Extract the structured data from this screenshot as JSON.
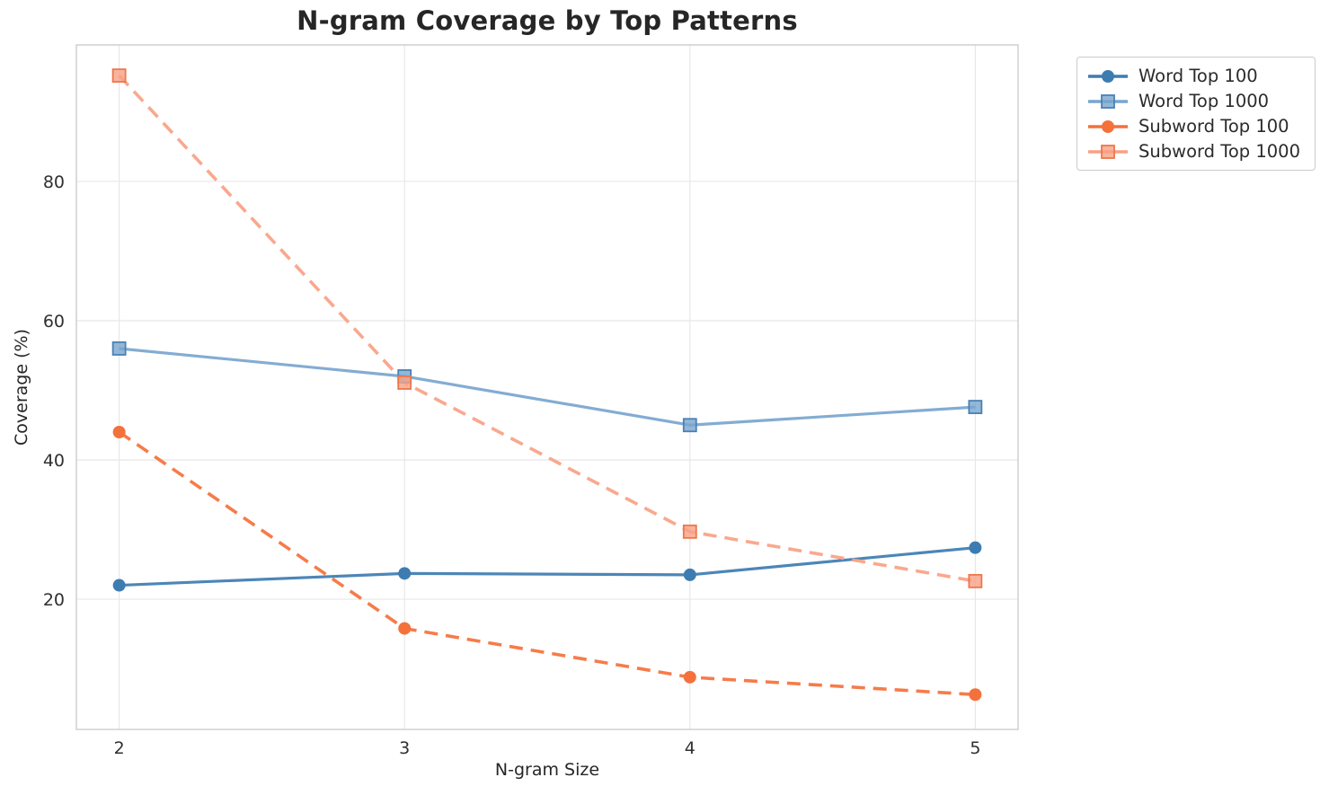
{
  "chart_data": {
    "type": "line",
    "title": "N-gram Coverage by Top Patterns",
    "xlabel": "N-gram Size",
    "ylabel": "Coverage (%)",
    "x": [
      2,
      3,
      4,
      5
    ],
    "xtick_labels": [
      "2",
      "3",
      "4",
      "5"
    ],
    "yticks": [
      20,
      40,
      60,
      80
    ],
    "ytick_labels": [
      "20",
      "40",
      "60",
      "80"
    ],
    "xlim": [
      1.85,
      5.15
    ],
    "ylim": [
      1.3,
      99.6
    ],
    "grid": true,
    "legend_position": "upper right, outside plot",
    "series": [
      {
        "name": "Word Top 100",
        "color": "#3d7cb1",
        "marker": "circle",
        "marker_edge": "#3d7cb1",
        "line_style": "solid",
        "values": [
          22,
          23.7,
          23.5,
          27.4
        ]
      },
      {
        "name": "Word Top 1000",
        "color": "#78a5ce",
        "marker": "square",
        "marker_edge": "#4a81b4",
        "line_style": "solid",
        "values": [
          56,
          52,
          45,
          47.6
        ]
      },
      {
        "name": "Subword Top 100",
        "color": "#f4713b",
        "marker": "circle",
        "marker_edge": "#f4713b",
        "line_style": "dashed",
        "values": [
          44,
          15.8,
          8.8,
          6.3
        ]
      },
      {
        "name": "Subword Top 1000",
        "color": "#f9a184",
        "marker": "square",
        "marker_edge": "#f0764a",
        "line_style": "dashed",
        "values": [
          95.2,
          51.1,
          29.7,
          22.6
        ]
      }
    ]
  },
  "style": {
    "grid_color": "#e8e8e8",
    "spine_color": "#cccccc",
    "text_color": "#262626",
    "background": "#ffffff"
  }
}
